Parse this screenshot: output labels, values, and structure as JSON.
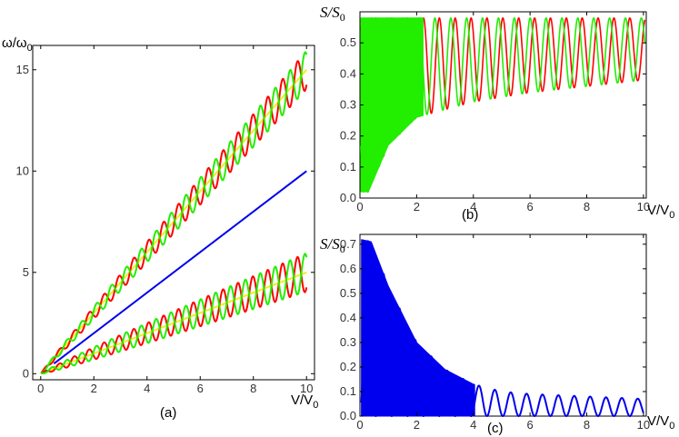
{
  "colors": {
    "red": "#ff0000",
    "green": "#22ee00",
    "yellow": "#eeee22",
    "blue": "#0000ee"
  },
  "chart_data": [
    {
      "id": "a",
      "type": "line",
      "panel_label": "(a)",
      "ylabel_main": "ω/ω",
      "ylabel_sub": "0",
      "xlabel_main": "V/V",
      "xlabel_sub": "0",
      "xlim": [
        -0.3,
        10.3
      ],
      "ylim": [
        -0.3,
        16.2
      ],
      "xticks": [
        0,
        2,
        4,
        6,
        8,
        10
      ],
      "yticks": [
        0,
        5,
        10,
        15
      ],
      "series": [
        {
          "color": "blue",
          "desc": "straight line",
          "x": [
            0.5,
            10
          ],
          "y": [
            0.5,
            10
          ]
        },
        {
          "color": "yellow",
          "x": [
            0,
            10
          ],
          "y": [
            0,
            15
          ]
        },
        {
          "color": "red",
          "desc": "oscillates about ω = 1.5V/V0",
          "x": [
            0,
            2,
            4,
            6,
            8,
            10
          ],
          "y": [
            0,
            3,
            6,
            9,
            12,
            15
          ]
        },
        {
          "color": "green",
          "desc": "oscillates about ω = 1.5V/V0",
          "x": [
            0,
            2,
            4,
            6,
            8,
            10
          ],
          "y": [
            0,
            3,
            6,
            9,
            12,
            15
          ]
        },
        {
          "color": "yellow",
          "x": [
            0,
            10
          ],
          "y": [
            0,
            5
          ]
        },
        {
          "color": "red",
          "desc": "oscillates about ω = 0.5V/V0",
          "x": [
            0,
            2,
            4,
            6,
            8,
            10
          ],
          "y": [
            0,
            1,
            2,
            3,
            4,
            5
          ]
        },
        {
          "color": "green",
          "desc": "oscillates about ω = 0.5V/V0",
          "x": [
            0,
            2,
            4,
            6,
            8,
            10
          ],
          "y": [
            0,
            1,
            2,
            3,
            4,
            5
          ]
        }
      ],
      "amplitude_at_x10": 0.95,
      "oscillation_period": 0.56
    },
    {
      "id": "b",
      "type": "line",
      "panel_label": "(b)",
      "ylabel_main": "S/S",
      "ylabel_sub": "0",
      "xlabel_main": "V/V",
      "xlabel_sub": "0",
      "xlim": [
        0,
        10.1
      ],
      "ylim": [
        0,
        0.6
      ],
      "xticks": [
        0,
        2,
        4,
        6,
        8,
        10
      ],
      "yticks": [
        0.0,
        0.1,
        0.2,
        0.3,
        0.4,
        0.5
      ],
      "series": [
        {
          "color": "red",
          "max": 0.58,
          "min_at_x": [
            [
              0.3,
              0.02
            ],
            [
              1,
              0.17
            ],
            [
              2,
              0.26
            ],
            [
              4,
              0.31
            ],
            [
              6,
              0.34
            ],
            [
              8,
              0.36
            ],
            [
              10,
              0.38
            ]
          ]
        },
        {
          "color": "green",
          "max": 0.58,
          "min_at_x": [
            [
              0.3,
              0.02
            ],
            [
              1,
              0.17
            ],
            [
              2,
              0.26
            ],
            [
              4,
              0.31
            ],
            [
              6,
              0.34
            ],
            [
              8,
              0.36
            ],
            [
              10,
              0.38
            ]
          ]
        }
      ],
      "oscillation_period": 0.56
    },
    {
      "id": "c",
      "type": "line",
      "panel_label": "(c)",
      "ylabel_main": "S/S",
      "ylabel_sub": "0",
      "xlabel_main": "V/V",
      "xlabel_sub": "0",
      "xlim": [
        0,
        10.1
      ],
      "ylim": [
        0,
        0.74
      ],
      "xticks": [
        0,
        2,
        4,
        6,
        8,
        10
      ],
      "yticks": [
        0.0,
        0.1,
        0.2,
        0.3,
        0.4,
        0.5,
        0.6,
        0.7
      ],
      "series": [
        {
          "color": "blue",
          "max_at_x": [
            [
              0,
              0.72
            ],
            [
              0.4,
              0.71
            ],
            [
              1,
              0.53
            ],
            [
              2,
              0.3
            ],
            [
              3,
              0.19
            ],
            [
              4,
              0.13
            ],
            [
              5,
              0.1
            ],
            [
              6,
              0.09
            ],
            [
              8,
              0.08
            ],
            [
              10,
              0.07
            ]
          ],
          "min": 0.0
        }
      ],
      "oscillation_period": 0.56
    }
  ]
}
